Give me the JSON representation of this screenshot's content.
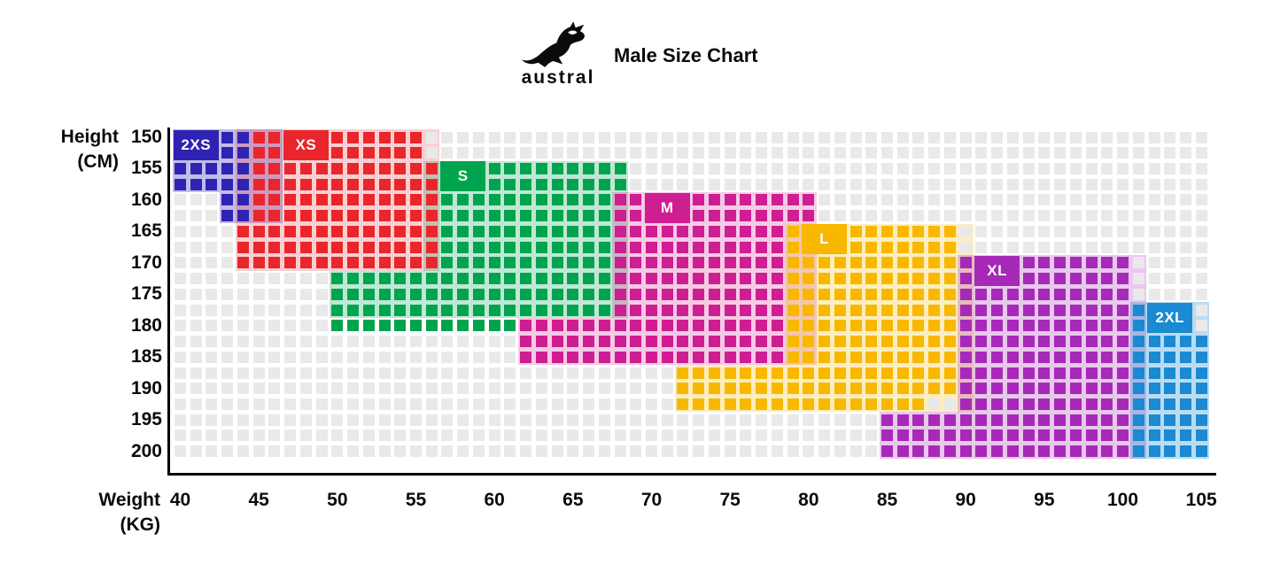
{
  "header": {
    "logo_text": "austral",
    "title": "Male Size Chart"
  },
  "axes": {
    "y_title_line1": "Height",
    "y_title_line2": "(CM)",
    "x_title_line1": "Weight",
    "x_title_line2": "(KG)",
    "y_ticks": [
      150,
      155,
      160,
      165,
      170,
      175,
      180,
      185,
      190,
      195,
      200
    ],
    "x_ticks": [
      40,
      45,
      50,
      55,
      60,
      65,
      70,
      75,
      80,
      85,
      90,
      95,
      100,
      105
    ]
  },
  "grid": {
    "weight_min": 40,
    "weight_max": 105,
    "weight_step_per_cell": 1,
    "height_min": 150,
    "height_max": 200,
    "height_step_per_cell": 2.5,
    "empty_cell_color": "#e9e9e9"
  },
  "chart_data": {
    "type": "heatmap",
    "title": "Male Size Chart",
    "xlabel": "Weight (KG)",
    "ylabel": "Height (CM)",
    "x_range": [
      40,
      105
    ],
    "y_range": [
      150,
      200
    ],
    "legend_position": "labels-inside-regions",
    "grid": true,
    "series": [
      {
        "name": "2XS",
        "weight_range": [
          40,
          44
        ],
        "height_range": [
          150,
          162.5
        ]
      },
      {
        "name": "XS",
        "weight_range": [
          44,
          56
        ],
        "height_range": [
          150,
          170
        ]
      },
      {
        "name": "S",
        "weight_range": [
          50,
          68
        ],
        "height_range": [
          155,
          180
        ]
      },
      {
        "name": "M",
        "weight_range": [
          62,
          80
        ],
        "height_range": [
          160,
          185
        ]
      },
      {
        "name": "L",
        "weight_range": [
          72,
          89
        ],
        "height_range": [
          165,
          192.5
        ]
      },
      {
        "name": "XL",
        "weight_range": [
          85,
          100
        ],
        "height_range": [
          170,
          200
        ]
      },
      {
        "name": "2XL",
        "weight_range": [
          101,
          105
        ],
        "height_range": [
          177.5,
          200
        ]
      }
    ]
  },
  "sizes": [
    {
      "name": "2XS",
      "color": "#2f23b3",
      "bg_alpha": 0.3,
      "label": [
        40,
        42,
        150,
        152.5
      ],
      "solid": [
        [
          40,
          44,
          150,
          157.5
        ],
        [
          43,
          44,
          160,
          162.5
        ]
      ],
      "bg": [
        [
          40,
          46,
          150,
          157.5
        ],
        [
          43,
          46,
          160,
          162.5
        ]
      ]
    },
    {
      "name": "XS",
      "color": "#e9262c",
      "bg_alpha": 0.22,
      "label": [
        47,
        49,
        150,
        152.5
      ],
      "solid": [
        [
          45,
          55,
          150,
          152.5
        ],
        [
          45,
          56,
          155,
          162.5
        ],
        [
          44,
          56,
          165,
          170
        ]
      ],
      "bg": [
        [
          44,
          56,
          150,
          170
        ]
      ]
    },
    {
      "name": "S",
      "color": "#00a44f",
      "bg_alpha": 0.25,
      "label": [
        57,
        59,
        155,
        157.5
      ],
      "solid": [
        [
          57,
          68,
          155,
          157.5
        ],
        [
          57,
          67,
          160,
          170
        ],
        [
          50,
          67,
          172.5,
          177.5
        ],
        [
          50,
          61,
          180,
          180
        ]
      ],
      "bg": [
        [
          56,
          68,
          155,
          170
        ],
        [
          50,
          68,
          172.5,
          177.5
        ]
      ]
    },
    {
      "name": "M",
      "color": "#cf1d92",
      "bg_alpha": 0.23,
      "label": [
        70,
        72,
        160,
        162.5
      ],
      "solid": [
        [
          68,
          80,
          160,
          162.5
        ],
        [
          68,
          78,
          165,
          177.5
        ],
        [
          62,
          78,
          180,
          185
        ]
      ],
      "bg": [
        [
          68,
          80,
          160,
          177.5
        ],
        [
          62,
          80,
          180,
          185
        ]
      ]
    },
    {
      "name": "L",
      "color": "#f8b800",
      "bg_alpha": 0.25,
      "label": [
        80,
        82,
        165,
        167.5
      ],
      "solid": [
        [
          79,
          89,
          165,
          185
        ],
        [
          72,
          89,
          187.5,
          190
        ],
        [
          72,
          87,
          192.5,
          192.5
        ]
      ],
      "bg": [
        [
          79,
          90,
          165,
          185
        ],
        [
          72,
          90,
          187.5,
          192.5
        ]
      ]
    },
    {
      "name": "XL",
      "color": "#a62ab7",
      "bg_alpha": 0.26,
      "label": [
        91,
        93,
        170,
        172.5
      ],
      "solid": [
        [
          90,
          100,
          170,
          192.5
        ],
        [
          85,
          100,
          195,
          200
        ]
      ],
      "bg": [
        [
          90,
          101,
          170,
          192.5
        ],
        [
          85,
          101,
          195,
          200
        ]
      ]
    },
    {
      "name": "2XL",
      "color": "#1b8ad2",
      "bg_alpha": 0.3,
      "label": [
        102,
        104,
        177.5,
        180
      ],
      "solid": [
        [
          101,
          101,
          177.5,
          180
        ],
        [
          101,
          105,
          182.5,
          200
        ]
      ],
      "bg": [
        [
          101,
          105,
          177.5,
          200
        ]
      ]
    }
  ]
}
